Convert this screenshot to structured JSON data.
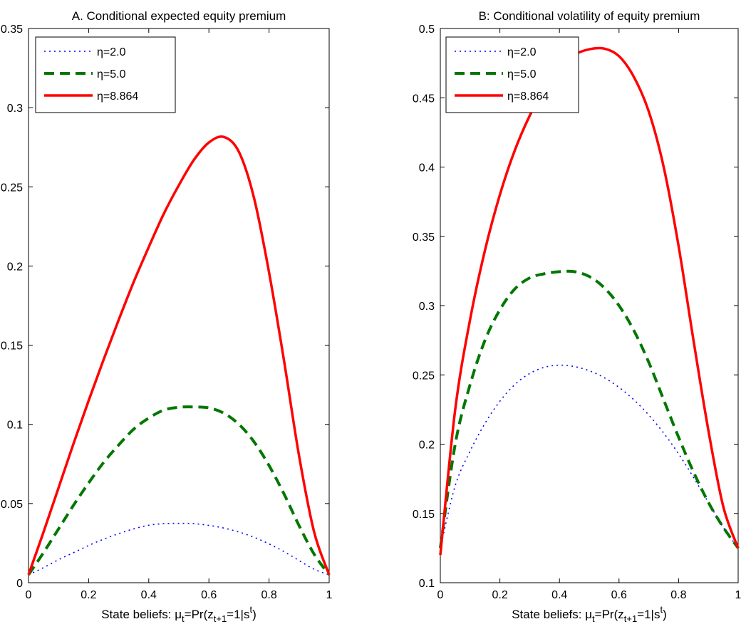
{
  "chart_data": [
    {
      "type": "line",
      "title": "A. Conditional expected equity premium",
      "xlabel": "State beliefs: μt=Pr(zt+1=1|st)",
      "xlabel_parts": {
        "prefix": "State beliefs: μ",
        "sub1": "t",
        "mid1": "=Pr(z",
        "sub2": "t+1",
        "mid2": "=1|s",
        "sup": "t",
        "suffix": ")"
      },
      "ylabel": "",
      "xlim": [
        0,
        1
      ],
      "ylim": [
        0,
        0.35
      ],
      "xticks": [
        0,
        0.2,
        0.4,
        0.6,
        0.8,
        1
      ],
      "xtick_labels": [
        "0",
        "0.2",
        "0.4",
        "0.6",
        "0.8",
        "1"
      ],
      "yticks": [
        0,
        0.05,
        0.1,
        0.15,
        0.2,
        0.25,
        0.3,
        0.35
      ],
      "ytick_labels": [
        "0",
        "0.05",
        "0.1",
        "0.15",
        "0.2",
        "0.25",
        "0.3",
        "0.35"
      ],
      "grid": false,
      "legend_position": "top-left",
      "x": [
        0,
        0.05,
        0.1,
        0.15,
        0.2,
        0.25,
        0.3,
        0.35,
        0.4,
        0.45,
        0.5,
        0.55,
        0.6,
        0.65,
        0.7,
        0.75,
        0.8,
        0.85,
        0.9,
        0.95,
        1
      ],
      "series": [
        {
          "name": "η=2.0",
          "color": "#0000ff",
          "style": "dotted",
          "values": [
            0.005,
            0.0095,
            0.0145,
            0.019,
            0.0235,
            0.0275,
            0.031,
            0.034,
            0.0363,
            0.0373,
            0.0375,
            0.0373,
            0.0362,
            0.0345,
            0.032,
            0.0287,
            0.0245,
            0.0196,
            0.014,
            0.0085,
            0.005
          ]
        },
        {
          "name": "η=5.0",
          "color": "#007700",
          "style": "dashed",
          "values": [
            0.005,
            0.019,
            0.034,
            0.049,
            0.063,
            0.076,
            0.087,
            0.097,
            0.104,
            0.109,
            0.1108,
            0.111,
            0.1104,
            0.107,
            0.1,
            0.089,
            0.074,
            0.056,
            0.036,
            0.018,
            0.005
          ]
        },
        {
          "name": "η=8.864",
          "color": "#ff0000",
          "style": "solid",
          "values": [
            0.005,
            0.032,
            0.06,
            0.088,
            0.115,
            0.141,
            0.166,
            0.19,
            0.212,
            0.233,
            0.251,
            0.267,
            0.278,
            0.2815,
            0.272,
            0.243,
            0.196,
            0.14,
            0.08,
            0.032,
            0.005
          ]
        }
      ]
    },
    {
      "type": "line",
      "title": "B: Conditional volatility of equity premium",
      "xlabel": "State beliefs: μt=Pr(zt+1=1|st)",
      "xlabel_parts": {
        "prefix": "State beliefs: μ",
        "sub1": "t",
        "mid1": "=Pr(z",
        "sub2": "t+1",
        "mid2": "=1|s",
        "sup": "t",
        "suffix": ")"
      },
      "ylabel": "",
      "xlim": [
        0,
        1
      ],
      "ylim": [
        0.1,
        0.5
      ],
      "xticks": [
        0,
        0.2,
        0.4,
        0.6,
        0.8,
        1
      ],
      "xtick_labels": [
        "0",
        "0.2",
        "0.4",
        "0.6",
        "0.8",
        "1"
      ],
      "yticks": [
        0.1,
        0.15,
        0.2,
        0.25,
        0.3,
        0.35,
        0.4,
        0.45,
        0.5
      ],
      "ytick_labels": [
        "0.1",
        "0.15",
        "0.2",
        "0.25",
        "0.3",
        "0.35",
        "0.4",
        "0.45",
        "0.5"
      ],
      "grid": false,
      "legend_position": "top-left",
      "x": [
        0,
        0.05,
        0.1,
        0.15,
        0.2,
        0.25,
        0.3,
        0.35,
        0.4,
        0.45,
        0.5,
        0.55,
        0.6,
        0.65,
        0.7,
        0.75,
        0.8,
        0.85,
        0.9,
        0.95,
        1
      ],
      "series": [
        {
          "name": "η=2.0",
          "color": "#0000ff",
          "style": "dotted",
          "values": [
            0.125,
            0.17,
            0.195,
            0.215,
            0.231,
            0.243,
            0.251,
            0.2555,
            0.257,
            0.256,
            0.253,
            0.248,
            0.241,
            0.232,
            0.221,
            0.208,
            0.193,
            0.176,
            0.158,
            0.14,
            0.125
          ]
        },
        {
          "name": "η=5.0",
          "color": "#007700",
          "style": "dashed",
          "values": [
            0.125,
            0.2,
            0.243,
            0.275,
            0.297,
            0.312,
            0.32,
            0.323,
            0.3245,
            0.3245,
            0.321,
            0.313,
            0.3,
            0.282,
            0.259,
            0.232,
            0.205,
            0.18,
            0.158,
            0.14,
            0.125
          ]
        },
        {
          "name": "η=8.864",
          "color": "#ff0000",
          "style": "solid",
          "values": [
            0.12,
            0.225,
            0.29,
            0.34,
            0.38,
            0.412,
            0.437,
            0.457,
            0.472,
            0.481,
            0.485,
            0.4855,
            0.48,
            0.465,
            0.44,
            0.4,
            0.343,
            0.275,
            0.21,
            0.155,
            0.125
          ]
        }
      ]
    }
  ]
}
